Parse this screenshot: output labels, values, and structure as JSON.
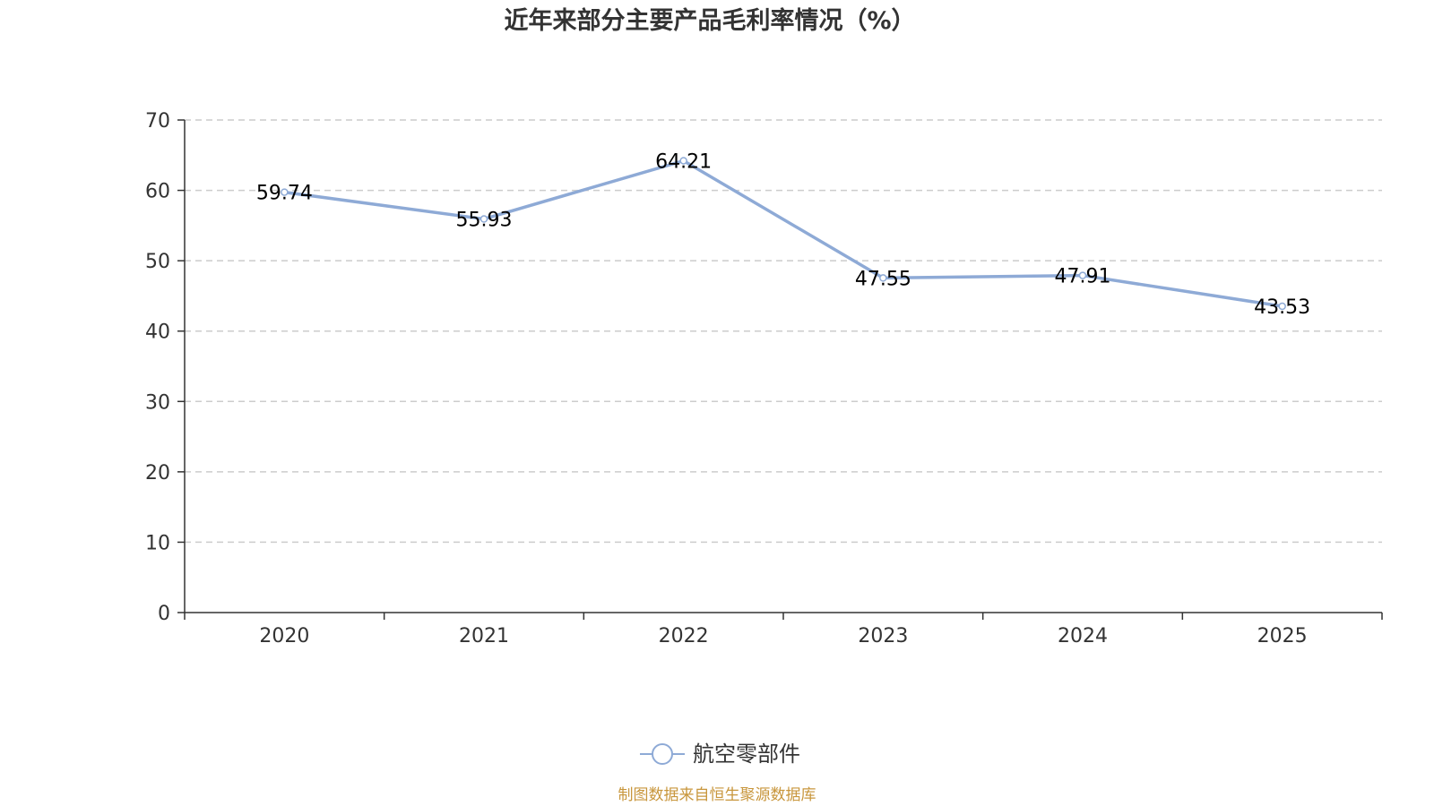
{
  "chart_data": {
    "type": "line",
    "title": "近年来部分主要产品毛利率情况（%）",
    "categories": [
      "2020",
      "2021",
      "2022",
      "2023",
      "2024",
      "2025"
    ],
    "series": [
      {
        "name": "航空零部件",
        "values": [
          59.74,
          55.93,
          64.21,
          47.55,
          47.91,
          43.53
        ],
        "color": "#8eaad6"
      }
    ],
    "ylim": [
      0,
      70
    ],
    "yticks": [
      0,
      10,
      20,
      30,
      40,
      50,
      60,
      70
    ],
    "xlabel": "",
    "ylabel": "",
    "grid": true,
    "legend": "bottom-center",
    "data_labels": true
  },
  "source": {
    "text": "制图数据来自恒生聚源数据库",
    "color": "#c8963c"
  },
  "colors": {
    "axis": "#333333",
    "grid": "#cccccc"
  }
}
